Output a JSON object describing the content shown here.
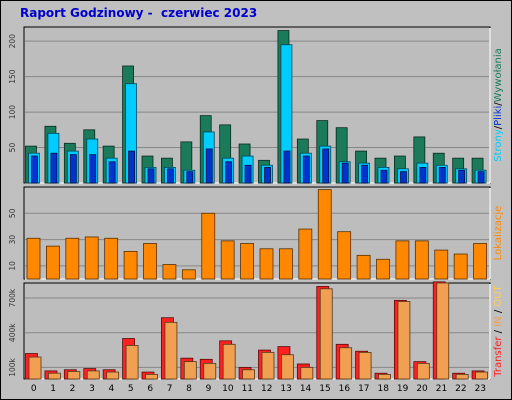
{
  "title": "Raport Godzinowy -  czerwiec 2023",
  "colors": {
    "background": "#c0c0c0",
    "plot_background": "#bdbdbd",
    "grid": "#888888",
    "title": "#0000cc",
    "hits": "#1b7a5a",
    "files": "#00ccff",
    "pages": "#0033cc",
    "visits": "#ff8800",
    "kbytes": "#ff2020",
    "out_in": "#ffcc66",
    "in_highlight": "#f0a050"
  },
  "chart_data": [
    {
      "type": "bar",
      "panel": "requests",
      "categories": [
        "0",
        "1",
        "2",
        "3",
        "4",
        "5",
        "6",
        "7",
        "8",
        "9",
        "10",
        "11",
        "12",
        "13",
        "14",
        "15",
        "16",
        "17",
        "18",
        "19",
        "20",
        "21",
        "22",
        "23"
      ],
      "ylim": [
        0,
        220
      ],
      "y_ticks": [
        "50",
        "100",
        "150",
        "200"
      ],
      "y_tick_values": [
        50,
        100,
        150,
        200
      ],
      "grid": true,
      "side_label": {
        "parts": [
          {
            "text": "Strony",
            "color": "#00ccff"
          },
          {
            "text": "/",
            "color": "#000000"
          },
          {
            "text": "Pliki",
            "color": "#0033cc"
          },
          {
            "text": "/",
            "color": "#000000"
          },
          {
            "text": "Wywołania",
            "color": "#1b7a5a"
          }
        ]
      },
      "series": [
        {
          "name": "Wywołania",
          "color": "#1b7a5a",
          "values": [
            52,
            80,
            56,
            75,
            52,
            165,
            38,
            35,
            58,
            95,
            82,
            55,
            32,
            215,
            62,
            88,
            78,
            45,
            35,
            38,
            65,
            42,
            35,
            35
          ]
        },
        {
          "name": "Pliki",
          "color": "#00ccff",
          "values": [
            42,
            70,
            45,
            62,
            35,
            140,
            22,
            22,
            18,
            72,
            35,
            38,
            25,
            195,
            42,
            52,
            30,
            28,
            22,
            20,
            28,
            25,
            20,
            18
          ]
        },
        {
          "name": "Strony",
          "color": "#0033cc",
          "values": [
            38,
            42,
            40,
            40,
            30,
            45,
            20,
            20,
            16,
            48,
            30,
            25,
            22,
            45,
            38,
            48,
            28,
            25,
            18,
            16,
            22,
            22,
            18,
            16
          ]
        }
      ]
    },
    {
      "type": "bar",
      "panel": "visits",
      "categories": [
        "0",
        "1",
        "2",
        "3",
        "4",
        "5",
        "6",
        "7",
        "8",
        "9",
        "10",
        "11",
        "12",
        "13",
        "14",
        "15",
        "16",
        "17",
        "18",
        "19",
        "20",
        "21",
        "22",
        "23"
      ],
      "ylim": [
        0,
        70
      ],
      "y_ticks": [
        "10",
        "30",
        "50"
      ],
      "y_tick_values": [
        10,
        30,
        50
      ],
      "grid": true,
      "side_label": {
        "parts": [
          {
            "text": "Lokalizacje",
            "color": "#ff8800"
          }
        ]
      },
      "series": [
        {
          "name": "Lokalizacje",
          "color": "#ff8800",
          "values": [
            31,
            25,
            31,
            32,
            31,
            21,
            27,
            11,
            7,
            50,
            29,
            27,
            23,
            23,
            38,
            68,
            36,
            18,
            15,
            29,
            29,
            22,
            19,
            27
          ]
        }
      ]
    },
    {
      "type": "bar",
      "panel": "transfer",
      "categories": [
        "0",
        "1",
        "2",
        "3",
        "4",
        "5",
        "6",
        "7",
        "8",
        "9",
        "10",
        "11",
        "12",
        "13",
        "14",
        "15",
        "16",
        "17",
        "18",
        "19",
        "20",
        "21",
        "22",
        "23"
      ],
      "ylim": [
        0,
        830000
      ],
      "y_ticks": [
        "100k",
        "400k",
        "700k"
      ],
      "y_tick_values": [
        100000,
        400000,
        700000
      ],
      "grid": true,
      "side_label": {
        "parts": [
          {
            "text": "Transfer",
            "color": "#ff2020"
          },
          {
            "text": " / ",
            "color": "#000000"
          },
          {
            "text": "IN",
            "color": "#f0a050"
          },
          {
            "text": " / ",
            "color": "#000000"
          },
          {
            "text": "OUT",
            "color": "#ffcc66"
          }
        ]
      },
      "series": [
        {
          "name": "Transfer",
          "color": "#ff2020",
          "values": [
            220000,
            70000,
            80000,
            90000,
            80000,
            350000,
            60000,
            530000,
            180000,
            170000,
            330000,
            100000,
            250000,
            280000,
            130000,
            800000,
            300000,
            240000,
            50000,
            680000,
            150000,
            840000,
            50000,
            70000
          ]
        },
        {
          "name": "IN",
          "color": "#f0a050",
          "values": [
            190000,
            50000,
            65000,
            70000,
            60000,
            290000,
            40000,
            490000,
            150000,
            135000,
            300000,
            80000,
            230000,
            210000,
            100000,
            780000,
            270000,
            230000,
            40000,
            670000,
            135000,
            830000,
            40000,
            60000
          ]
        }
      ]
    }
  ]
}
